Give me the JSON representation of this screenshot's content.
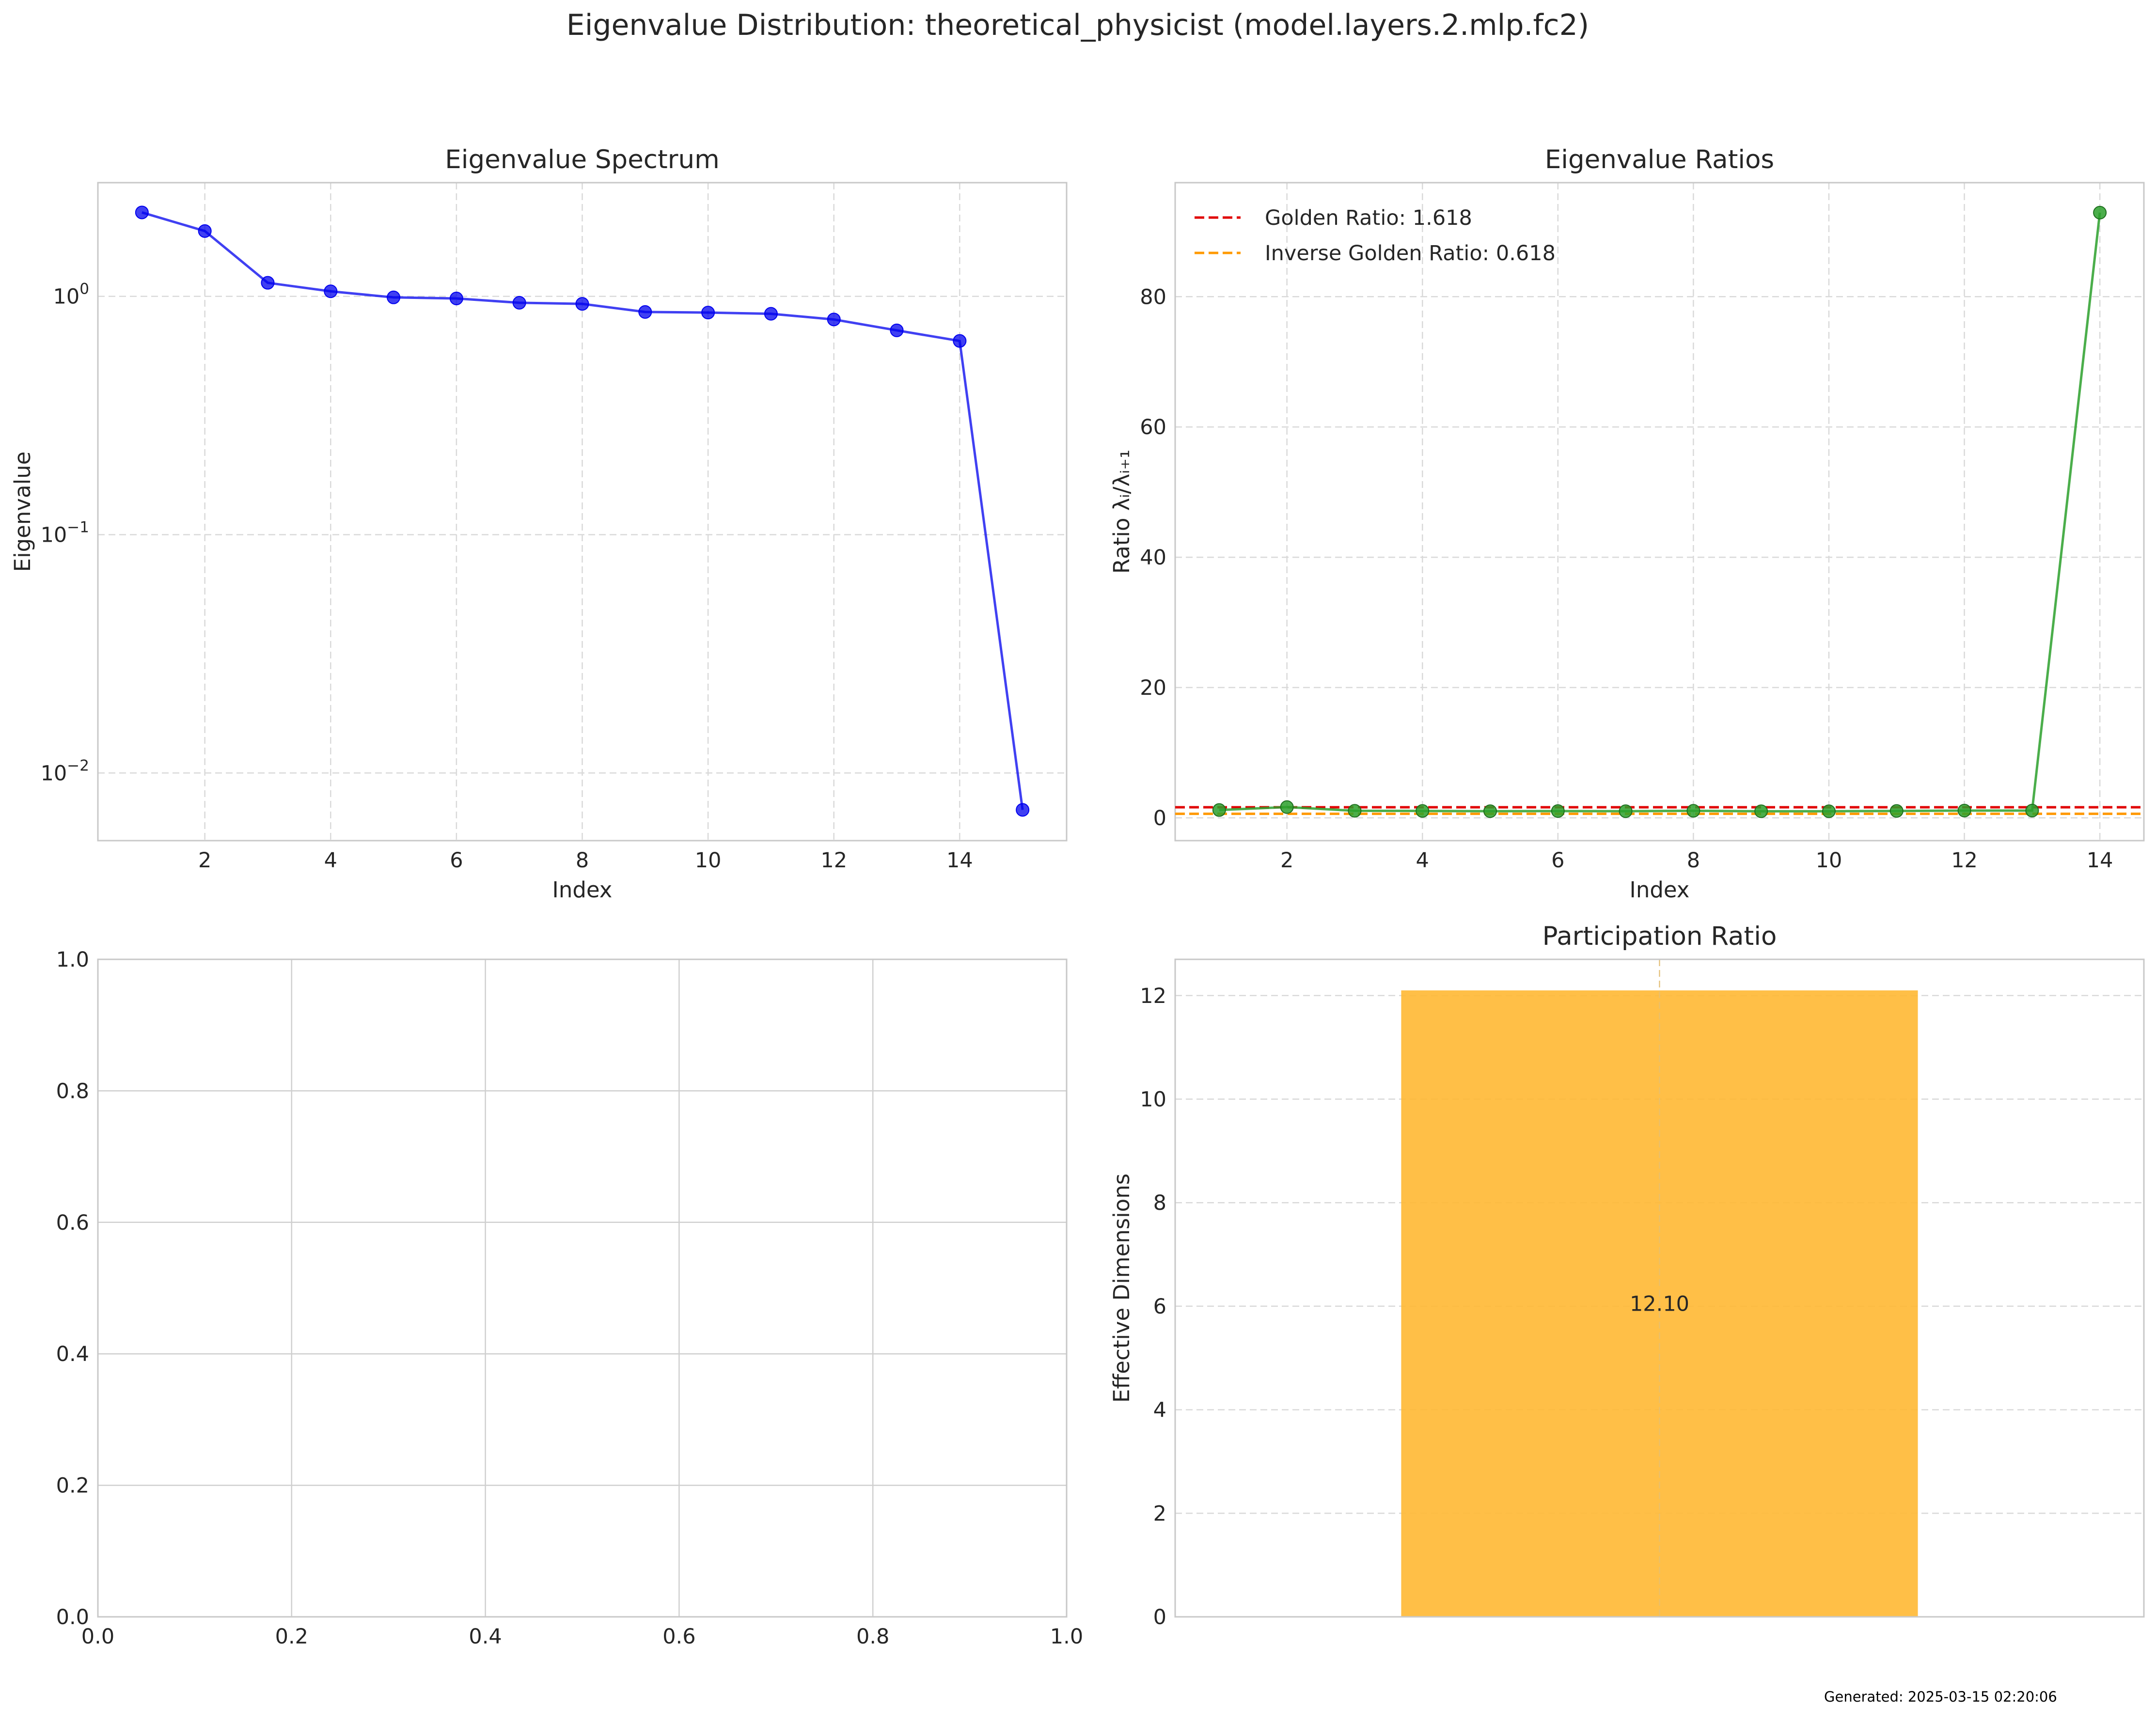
{
  "figure": {
    "suptitle": "Eigenvalue Distribution: theoretical_physicist (model.layers.2.mlp.fc2)",
    "footer": "Generated: 2025-03-15 02:20:06"
  },
  "colors": {
    "spectrum": "#0000ee",
    "ratios": "#2ca02c",
    "golden": "#e00000",
    "inverse_golden": "#ff9900",
    "bar": "#ffb833",
    "grid": "#d9d9d9",
    "spine": "#c8c8c8"
  },
  "chart_data": [
    {
      "id": "spectrum",
      "type": "line",
      "title": "Eigenvalue Spectrum",
      "xlabel": "Index",
      "ylabel": "Eigenvalue",
      "yscale": "log",
      "xlim": [
        0.3,
        15.7
      ],
      "ylim": [
        0.0052,
        3.0
      ],
      "xticks": [
        2,
        4,
        6,
        8,
        10,
        12,
        14
      ],
      "ytick_labels": [
        {
          "value": 1,
          "base": "10",
          "exp": "0"
        },
        {
          "value": 0.1,
          "base": "10",
          "exp": "−1"
        },
        {
          "value": 0.01,
          "base": "10",
          "exp": "−2"
        }
      ],
      "grid": true,
      "markers": true,
      "x": [
        1,
        2,
        3,
        4,
        5,
        6,
        7,
        8,
        9,
        10,
        11,
        12,
        13,
        14,
        15
      ],
      "y": [
        2.25,
        1.88,
        1.14,
        1.05,
        0.99,
        0.98,
        0.94,
        0.93,
        0.86,
        0.855,
        0.845,
        0.8,
        0.72,
        0.65,
        0.007
      ]
    },
    {
      "id": "ratios",
      "type": "line",
      "title": "Eigenvalue Ratios",
      "xlabel": "Index",
      "ylabel": "Ratio λᵢ/λᵢ₊₁",
      "xlim": [
        0.35,
        14.65
      ],
      "ylim": [
        -3.5,
        97.5
      ],
      "xticks": [
        2,
        4,
        6,
        8,
        10,
        12,
        14
      ],
      "yticks": [
        0,
        20,
        40,
        60,
        80
      ],
      "grid": true,
      "markers": true,
      "x": [
        1,
        2,
        3,
        4,
        5,
        6,
        7,
        8,
        9,
        10,
        11,
        12,
        13,
        14
      ],
      "y": [
        1.2,
        1.65,
        1.08,
        1.06,
        1.02,
        1.04,
        1.02,
        1.08,
        1.01,
        1.01,
        1.06,
        1.11,
        1.11,
        92.9
      ],
      "reference_lines": [
        {
          "label": "Golden Ratio: 1.618",
          "value": 1.618,
          "color_key": "golden"
        },
        {
          "label": "Inverse Golden Ratio: 0.618",
          "value": 0.618,
          "color_key": "inverse_golden"
        }
      ],
      "legend": "top-left"
    },
    {
      "id": "empty",
      "type": "line",
      "title": "",
      "xlim": [
        0,
        1
      ],
      "ylim": [
        0,
        1
      ],
      "xticks": [
        "0.0",
        "0.2",
        "0.4",
        "0.6",
        "0.8",
        "1.0"
      ],
      "yticks": [
        "0.0",
        "0.2",
        "0.4",
        "0.6",
        "0.8",
        "1.0"
      ],
      "grid": true,
      "values": []
    },
    {
      "id": "participation",
      "type": "bar",
      "title": "Participation Ratio",
      "ylabel": "Effective Dimensions",
      "xlim": [
        -0.75,
        0.75
      ],
      "ylim": [
        0,
        12.7
      ],
      "yticks": [
        0,
        2,
        4,
        6,
        8,
        10,
        12
      ],
      "grid": true,
      "categories": [
        ""
      ],
      "values": [
        12.1
      ],
      "data_labels": [
        "12.10"
      ]
    }
  ]
}
